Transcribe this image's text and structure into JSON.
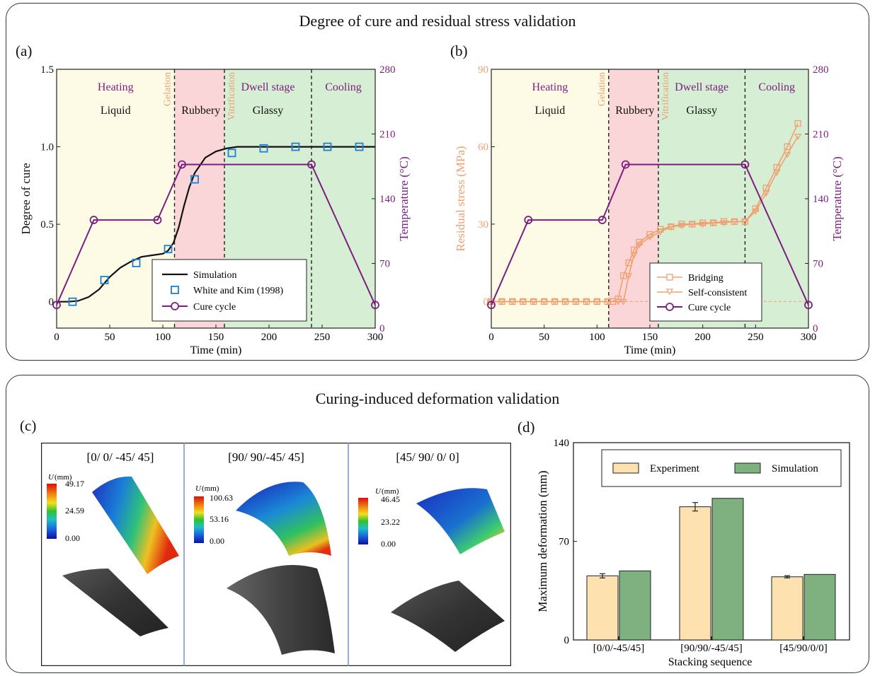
{
  "top_title": "Degree of cure and residual stress validation",
  "bottom_title": "Curing-induced deformation validation",
  "panel_labels": {
    "a": "(a)",
    "b": "(b)",
    "c": "(c)",
    "d": "(d)"
  },
  "colors": {
    "purple": "#7b1f7f",
    "orange": "#f0a070",
    "blue": "#1f7fd0",
    "black": "#111111",
    "heating_bg": "#fdfbe6",
    "rubbery_bg": "#fbd6d8",
    "glassy_bg": "#d6eed3",
    "experiment": "#fde2b0",
    "simulation": "#7fb07f"
  },
  "stages": {
    "heating": "Heating",
    "liquid": "Liquid",
    "gelation": "Gelation",
    "rubbery": "Rubbery",
    "vitrification": "Vitrification",
    "dwell": "Dwell stage",
    "glassy": "Glassy",
    "cooling": "Cooling"
  },
  "panel_c": {
    "u_label": "U",
    "u_unit": "(mm)",
    "views": [
      {
        "title": "[0/ 0/ -45/ 45]",
        "scale": [
          "49.17",
          "24.59",
          "0.00"
        ]
      },
      {
        "title": "[90/ 90/-45/ 45]",
        "scale": [
          "100.63",
          "53.16",
          "0.00"
        ]
      },
      {
        "title": "[45/ 90/ 0/ 0]",
        "scale": [
          "46.45",
          "23.22",
          "0.00"
        ]
      }
    ]
  },
  "chart_data": [
    {
      "id": "a",
      "type": "line",
      "xlabel": "Time (min)",
      "ylabel": "Degree of cure",
      "y2label": "Temperature (°C)",
      "xlim": [
        0,
        300
      ],
      "ylim": [
        0,
        1.5
      ],
      "y2lim": [
        0,
        280
      ],
      "xticks": [
        0,
        50,
        100,
        150,
        200,
        250,
        300
      ],
      "yticks": [
        0,
        0.5,
        1.0,
        1.5
      ],
      "yticklabels": [
        "0",
        "0.5",
        "1.0",
        "1.5"
      ],
      "y2ticks": [
        0,
        70,
        140,
        210,
        280
      ],
      "y_offset_zero": 0.17,
      "stage_bounds": [
        111,
        158,
        240
      ],
      "series": [
        {
          "name": "Simulation",
          "axis": "left",
          "style": "line",
          "color": "#111111",
          "x": [
            0,
            10,
            20,
            30,
            40,
            50,
            60,
            70,
            80,
            90,
            100,
            105,
            110,
            115,
            120,
            125,
            130,
            140,
            150,
            160,
            170,
            180,
            200,
            240,
            300
          ],
          "y": [
            0,
            0,
            0.005,
            0.03,
            0.08,
            0.16,
            0.22,
            0.26,
            0.29,
            0.3,
            0.31,
            0.33,
            0.38,
            0.48,
            0.62,
            0.74,
            0.83,
            0.93,
            0.97,
            0.99,
            1.0,
            1.0,
            1.0,
            1.0,
            1.0
          ]
        },
        {
          "name": "White and Kim (1998)",
          "axis": "left",
          "style": "square",
          "color": "#1f7fd0",
          "x": [
            15,
            45,
            75,
            105,
            130,
            165,
            195,
            225,
            255,
            285
          ],
          "y": [
            0,
            0.14,
            0.25,
            0.34,
            0.79,
            0.96,
            0.99,
            1.0,
            1.0,
            1.0
          ]
        },
        {
          "name": "Cure cycle",
          "axis": "right",
          "style": "line-circle",
          "color": "#7b1f7f",
          "x": [
            0,
            35,
            95,
            118,
            240,
            300
          ],
          "y": [
            25,
            117,
            117,
            177,
            177,
            25
          ],
          "marker_x": [
            0,
            35,
            95,
            118,
            240,
            300
          ]
        }
      ]
    },
    {
      "id": "b",
      "type": "line",
      "xlabel": "Time (min)",
      "ylabel": "Residual stress (MPa)",
      "y2label": "Temperature (°C)",
      "xlim": [
        0,
        300
      ],
      "ylim": [
        0,
        90
      ],
      "y2lim": [
        0,
        280
      ],
      "xticks": [
        0,
        50,
        100,
        150,
        200,
        250,
        300
      ],
      "yticks": [
        0,
        30,
        60,
        90
      ],
      "y2ticks": [
        0,
        70,
        140,
        210,
        280
      ],
      "y_offset_zero": 10.3,
      "stage_bounds": [
        111,
        158,
        240
      ],
      "series": [
        {
          "name": "Bridging",
          "axis": "left",
          "style": "line-square",
          "color": "#f0a070",
          "x": [
            0,
            10,
            20,
            30,
            40,
            50,
            60,
            70,
            80,
            90,
            100,
            110,
            115,
            120,
            125,
            130,
            135,
            140,
            150,
            160,
            170,
            180,
            190,
            200,
            210,
            220,
            230,
            240,
            250,
            260,
            270,
            280,
            290
          ],
          "y": [
            0,
            0,
            0,
            0,
            0,
            0,
            0,
            0,
            0,
            0,
            0,
            0,
            0,
            1,
            10,
            15,
            20,
            23,
            26,
            28,
            29,
            30,
            30,
            30.5,
            30.5,
            31,
            31,
            31,
            36,
            44,
            52,
            60,
            69
          ]
        },
        {
          "name": "Self-consistent",
          "axis": "left",
          "style": "line-triangle",
          "color": "#f0a070",
          "x": [
            0,
            10,
            20,
            30,
            40,
            50,
            60,
            70,
            80,
            90,
            100,
            110,
            120,
            125,
            130,
            135,
            140,
            150,
            160,
            170,
            180,
            190,
            200,
            210,
            220,
            230,
            240,
            250,
            260,
            270,
            280,
            290
          ],
          "y": [
            0,
            0,
            0,
            0,
            0,
            0,
            0,
            0,
            0,
            0,
            0,
            0,
            0,
            0,
            10,
            18,
            22,
            25,
            27,
            29,
            29.5,
            30,
            30,
            30.5,
            30.5,
            31,
            31,
            35,
            42,
            50,
            57,
            64
          ]
        },
        {
          "name": "Cure cycle",
          "axis": "right",
          "style": "line-circle",
          "color": "#7b1f7f",
          "x": [
            0,
            35,
            105,
            127,
            240,
            300
          ],
          "y": [
            25,
            117,
            117,
            177,
            177,
            25
          ]
        }
      ]
    },
    {
      "id": "d",
      "type": "bar",
      "xlabel": "Stacking sequence",
      "ylabel": "Maximum deformation (mm)",
      "ylim": [
        0,
        140
      ],
      "yticks": [
        0,
        70,
        140
      ],
      "categories": [
        "[0/0/-45/45]",
        "[90/90/-45/45]",
        "[45/90/0/0]"
      ],
      "series": [
        {
          "name": "Experiment",
          "values": [
            45.5,
            94.5,
            44.8
          ],
          "error": [
            1.5,
            3.0,
            0.8
          ]
        },
        {
          "name": "Simulation",
          "values": [
            49.0,
            100.5,
            46.5
          ]
        }
      ]
    }
  ]
}
